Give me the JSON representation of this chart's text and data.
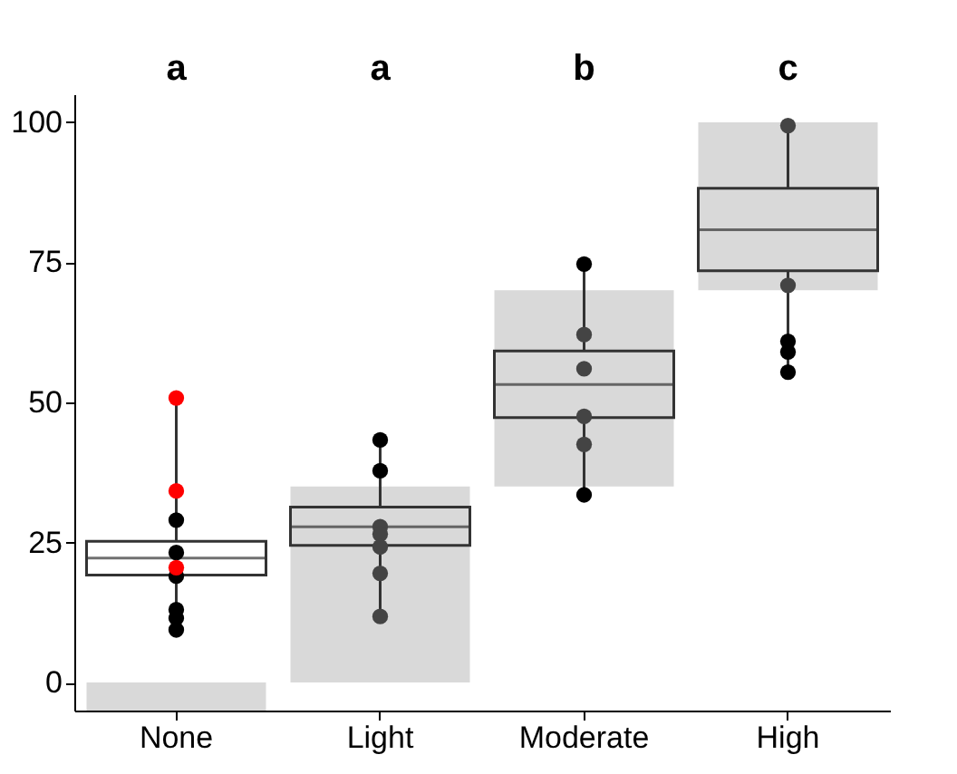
{
  "chart_data": {
    "type": "box",
    "categories": [
      "None",
      "Light",
      "Moderate",
      "High"
    ],
    "boxes": [
      {
        "low": 9.4,
        "q1": 19.2,
        "median": 22.2,
        "q3": 25.2,
        "high": 50.8
      },
      {
        "low": 11.8,
        "q1": 24.5,
        "median": 27.8,
        "q3": 31.3,
        "high": 43.3
      },
      {
        "low": 33.5,
        "q1": 47.3,
        "median": 53.2,
        "q3": 59.2,
        "high": 74.7
      },
      {
        "low": 55.4,
        "q1": 73.5,
        "median": 80.8,
        "q3": 88.2,
        "high": 99.4
      }
    ],
    "color": "#333333",
    "series": [
      {
        "type": "bar",
        "color": "#d9d9d9",
        "base": [
          -5,
          0,
          35,
          70
        ],
        "values": [
          5,
          35,
          35,
          30
        ]
      },
      {
        "type": "scatter",
        "color": "#000000",
        "x": [
          "None",
          "None",
          "None",
          "None",
          "None",
          "None",
          "Light",
          "Light",
          "Moderate",
          "Moderate",
          "High",
          "High",
          "High"
        ],
        "values": [
          29,
          23.2,
          19,
          13,
          11.5,
          9.4,
          43.3,
          37.8,
          74.7,
          33.5,
          60.9,
          59,
          55.4
        ]
      },
      {
        "type": "scatter",
        "color": "#ff0000",
        "x": [
          "None",
          "None",
          "None"
        ],
        "values": [
          50.8,
          34.2,
          20.5
        ]
      },
      {
        "type": "scatter",
        "color": "#444444",
        "x": [
          "Light",
          "Light",
          "Light",
          "Light",
          "Light",
          "Moderate",
          "Moderate",
          "Moderate",
          "Moderate",
          "High",
          "High"
        ],
        "values": [
          27.8,
          26.5,
          24.2,
          19.5,
          11.8,
          62.1,
          56,
          47.5,
          42.5,
          99.4,
          70.9
        ]
      }
    ],
    "ylim": [
      -5,
      105
    ],
    "yticks": [
      0,
      25,
      50,
      75,
      100
    ],
    "annotations": [
      "a",
      "a",
      "b",
      "c"
    ],
    "grid": false,
    "marker": "circle"
  }
}
